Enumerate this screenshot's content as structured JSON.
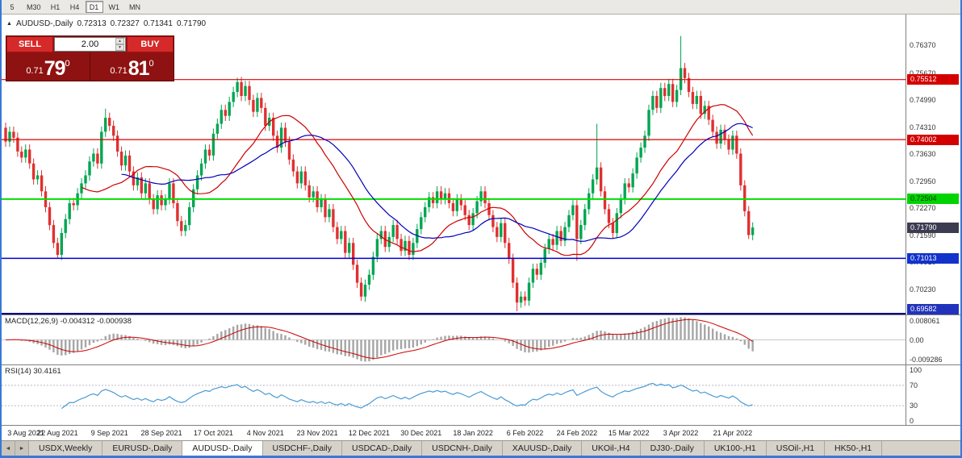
{
  "colors": {
    "window_border": "#3a78d7",
    "toolbar_bg": "#ebe9e4",
    "tabbar_bg": "#d6d2ca",
    "tab_active_bg": "#ffffff",
    "trade_panel_bg": "#8e1212",
    "trade_button_bg": "#d62a2a"
  },
  "toolbar": {
    "buttons": [
      "5",
      "M30",
      "H1",
      "H4",
      "D1",
      "W1",
      "MN"
    ],
    "active": "D1"
  },
  "chart_header": {
    "symbol_period": "AUDUSD-,Daily",
    "open": "0.72313",
    "high": "0.72327",
    "low": "0.71341",
    "close": "0.71790"
  },
  "trade_panel": {
    "sell_label": "SELL",
    "buy_label": "BUY",
    "volume": "2.00",
    "sell_price_small": "0.71",
    "sell_price_big": "79",
    "sell_price_sup": "0",
    "buy_price_small": "0.71",
    "buy_price_big": "81",
    "buy_price_sup": "0",
    "spin_up_icon": "▲",
    "spin_down_icon": "▼"
  },
  "chart_data": {
    "type": "candlestick",
    "symbol": "AUDUSD-",
    "timeframe": "Daily",
    "ylim": [
      0.696,
      0.7715
    ],
    "first_open": 0.743,
    "default_wick": 0.0013,
    "up_color": "#00a651",
    "down_color": "#e03030",
    "ma_fast_color": "#cc0000",
    "ma_slow_color": "#0000bb",
    "closes": [
      0.7395,
      0.742,
      0.7405,
      0.737,
      0.7355,
      0.7375,
      0.734,
      0.73,
      0.731,
      0.727,
      0.723,
      0.7185,
      0.714,
      0.711,
      0.7165,
      0.72,
      0.724,
      0.7235,
      0.7265,
      0.729,
      0.731,
      0.7345,
      0.7365,
      0.734,
      0.742,
      0.7455,
      0.7435,
      0.741,
      0.737,
      0.7335,
      0.736,
      0.732,
      0.7285,
      0.7305,
      0.7265,
      0.729,
      0.725,
      0.7225,
      0.726,
      0.7235,
      0.725,
      0.729,
      0.724,
      0.7195,
      0.717,
      0.7185,
      0.723,
      0.7275,
      0.731,
      0.734,
      0.7375,
      0.736,
      0.7415,
      0.744,
      0.7475,
      0.746,
      0.7495,
      0.752,
      0.7545,
      0.751,
      0.7535,
      0.75,
      0.747,
      0.7505,
      0.748,
      0.7435,
      0.7455,
      0.741,
      0.738,
      0.743,
      0.7395,
      0.735,
      0.732,
      0.729,
      0.732,
      0.7285,
      0.7255,
      0.727,
      0.723,
      0.725,
      0.7205,
      0.7225,
      0.718,
      0.715,
      0.717,
      0.7115,
      0.714,
      0.7085,
      0.704,
      0.7005,
      0.7035,
      0.706,
      0.7105,
      0.715,
      0.717,
      0.713,
      0.7155,
      0.7185,
      0.715,
      0.712,
      0.7145,
      0.711,
      0.714,
      0.7175,
      0.7205,
      0.723,
      0.7255,
      0.724,
      0.727,
      0.725,
      0.7265,
      0.724,
      0.722,
      0.725,
      0.7235,
      0.721,
      0.7185,
      0.7215,
      0.7245,
      0.727,
      0.724,
      0.721,
      0.718,
      0.7155,
      0.719,
      0.714,
      0.71,
      0.704,
      0.699,
      0.7005,
      0.6995,
      0.704,
      0.7075,
      0.706,
      0.709,
      0.7125,
      0.715,
      0.7135,
      0.717,
      0.7145,
      0.718,
      0.721,
      0.7235,
      0.715,
      0.7185,
      0.7225,
      0.7265,
      0.73,
      0.733,
      0.727,
      0.7225,
      0.719,
      0.7165,
      0.7215,
      0.725,
      0.729,
      0.728,
      0.7315,
      0.7355,
      0.738,
      0.741,
      0.7475,
      0.751,
      0.748,
      0.753,
      0.751,
      0.754,
      0.7495,
      0.7525,
      0.758,
      0.7555,
      0.752,
      0.749,
      0.751,
      0.7465,
      0.7485,
      0.745,
      0.742,
      0.739,
      0.7425,
      0.74,
      0.7375,
      0.741,
      0.7365,
      0.7285,
      0.722,
      0.716,
      0.7179
    ],
    "wick_overrides": {
      "13": [
        null,
        0.7102
      ],
      "25": [
        0.7478,
        null
      ],
      "58": [
        0.7556,
        null
      ],
      "89": [
        null,
        0.6994
      ],
      "128": [
        null,
        0.6968
      ],
      "143": [
        null,
        0.7095
      ],
      "148": [
        0.744,
        null
      ],
      "169": [
        0.7661,
        null
      ],
      "186": [
        null,
        0.715
      ]
    },
    "levels": [
      {
        "price": 0.75512,
        "label": "0.75512",
        "line_color": "#e00000",
        "line_width": 1.2,
        "badge_color": "#d40000",
        "text_color": "#ffffff"
      },
      {
        "price": 0.74002,
        "label": "0.74002",
        "line_color": "#e00000",
        "line_width": 1.2,
        "badge_color": "#d40000",
        "text_color": "#ffffff"
      },
      {
        "price": 0.72504,
        "label": "0.72504",
        "line_color": "#00e000",
        "line_width": 2,
        "badge_color": "#00d400",
        "text_color": "#003300"
      },
      {
        "price": 0.71013,
        "label": "0.71013",
        "line_color": "#0000d0",
        "line_width": 1.5,
        "badge_color": "#1133cc",
        "text_color": "#ffffff"
      },
      {
        "price": 0.69582,
        "label": "0.69582",
        "line_color": "#000080",
        "line_width": 2,
        "badge_color": "#2233bb",
        "text_color": "#ffffff"
      }
    ],
    "current": {
      "price": 0.7179,
      "label": "0.71790",
      "badge_color": "#3c3c50",
      "text_color": "#ffffff"
    },
    "axis_labels": [
      "0.76370",
      "0.75670",
      "0.74990",
      "0.74310",
      "0.73630",
      "0.72950",
      "0.72270",
      "0.71590",
      "0.70910",
      "0.70230"
    ]
  },
  "macd": {
    "label": "MACD(12,26,9) -0.004312 -0.000938",
    "params": [
      12,
      26,
      9
    ],
    "value": -0.004312,
    "signal_value": -0.000938,
    "axis": [
      "0.008061",
      "0.00",
      "-0.009286"
    ],
    "histogram_color": "#a6a6a6",
    "signal_color": "#cc0000"
  },
  "rsi": {
    "label": "RSI(14) 30.4161",
    "period": 14,
    "value": 30.4161,
    "axis": [
      "100",
      "70",
      "30",
      "0"
    ],
    "levels": [
      70,
      30
    ],
    "line_color": "#4a9bd5"
  },
  "dates": [
    "3 Aug 2021",
    "22 Aug 2021",
    "9 Sep 2021",
    "28 Sep 2021",
    "17 Oct 2021",
    "4 Nov 2021",
    "23 Nov 2021",
    "12 Dec 2021",
    "30 Dec 2021",
    "18 Jan 2022",
    "6 Feb 2022",
    "24 Feb 2022",
    "15 Mar 2022",
    "3 Apr 2022",
    "21 Apr 2022"
  ],
  "tabs": {
    "scroll_left_icon": "◄",
    "scroll_right_icon": "►",
    "active_index": 2,
    "items": [
      "USDX,Weekly",
      "EURUSD-,Daily",
      "AUDUSD-,Daily",
      "USDCHF-,Daily",
      "USDCAD-,Daily",
      "USDCNH-,Daily",
      "XAUUSD-,Daily",
      "UKOil-,H4",
      "DJ30-,Daily",
      "UK100-,H1",
      "USOil-,H1",
      "HK50-,H1"
    ]
  }
}
